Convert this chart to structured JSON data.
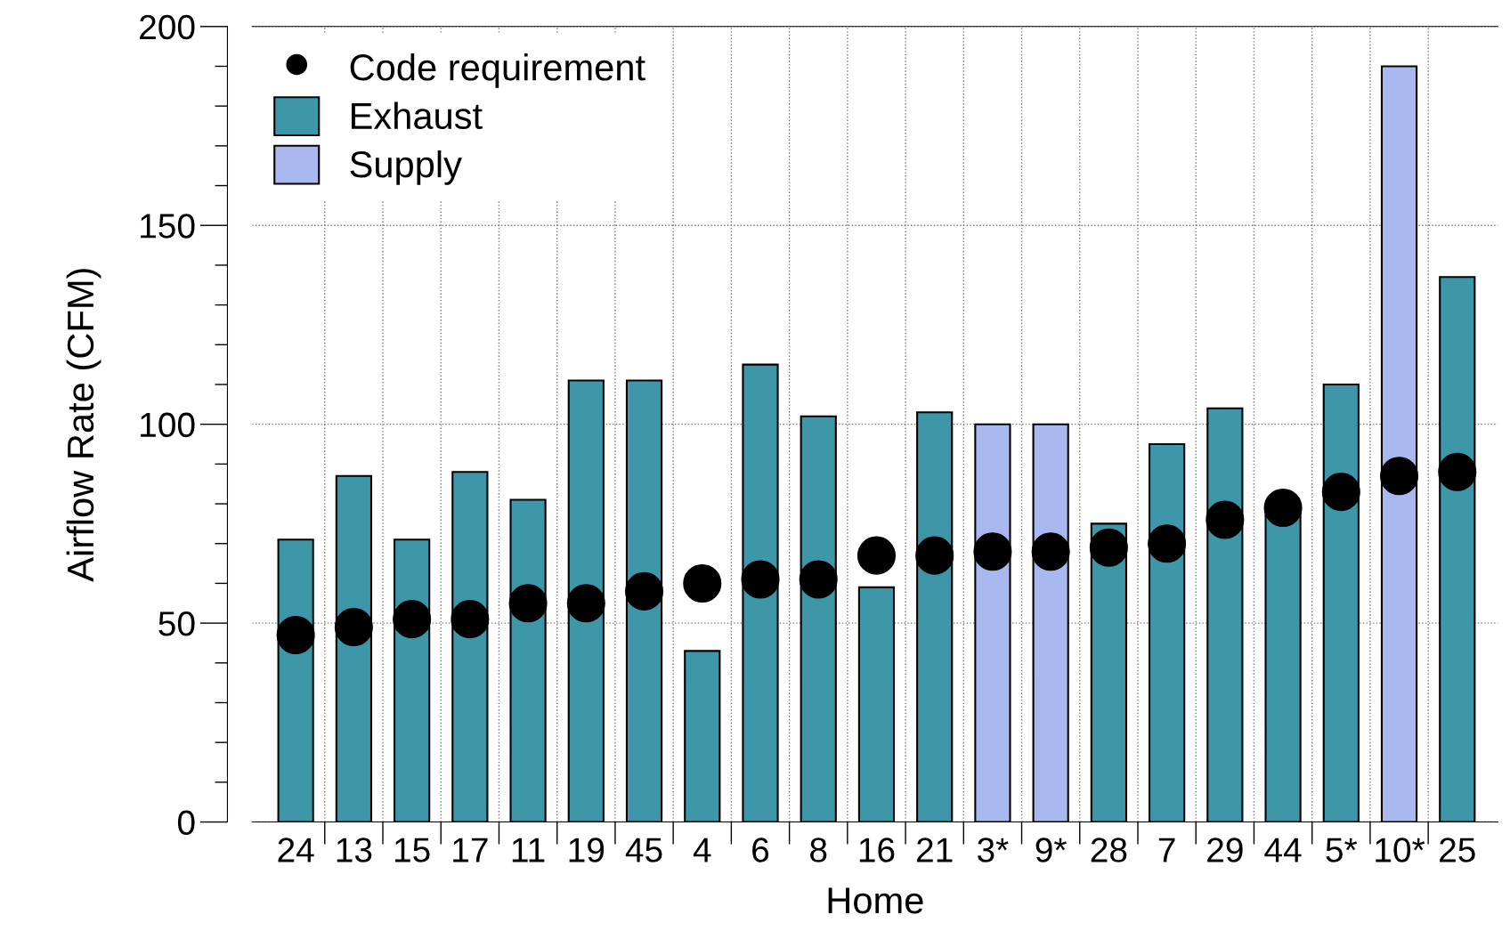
{
  "chart_data": {
    "type": "bar",
    "xlabel": "Home",
    "ylabel": "Airflow Rate (CFM)",
    "categories": [
      "24",
      "13",
      "15",
      "17",
      "11",
      "19",
      "45",
      "4",
      "6",
      "8",
      "16",
      "21",
      "3*",
      "9*",
      "28",
      "7",
      "29",
      "44",
      "5*",
      "10*",
      "25"
    ],
    "series": [
      {
        "name": "Code requirement",
        "type": "scatter",
        "color": "#000000",
        "values": [
          47,
          49,
          51,
          51,
          55,
          55,
          58,
          60,
          61,
          61,
          67,
          67,
          68,
          68,
          69,
          70,
          76,
          79,
          83,
          87,
          88
        ]
      },
      {
        "name": "Exhaust",
        "color": "#3d97a8",
        "values": [
          71,
          87,
          71,
          88,
          81,
          111,
          111,
          43,
          115,
          102,
          59,
          103,
          null,
          null,
          75,
          95,
          104,
          80,
          110,
          null,
          137
        ]
      },
      {
        "name": "Supply",
        "color": "#a9b8ee",
        "values": [
          null,
          null,
          null,
          null,
          null,
          null,
          null,
          null,
          null,
          null,
          null,
          null,
          100,
          100,
          null,
          null,
          null,
          null,
          null,
          190,
          null
        ]
      }
    ],
    "marker": "circle",
    "ylim": [
      0,
      200
    ],
    "yticks": [
      0,
      50,
      100,
      150,
      200
    ],
    "grid": true,
    "legend": "top left"
  }
}
